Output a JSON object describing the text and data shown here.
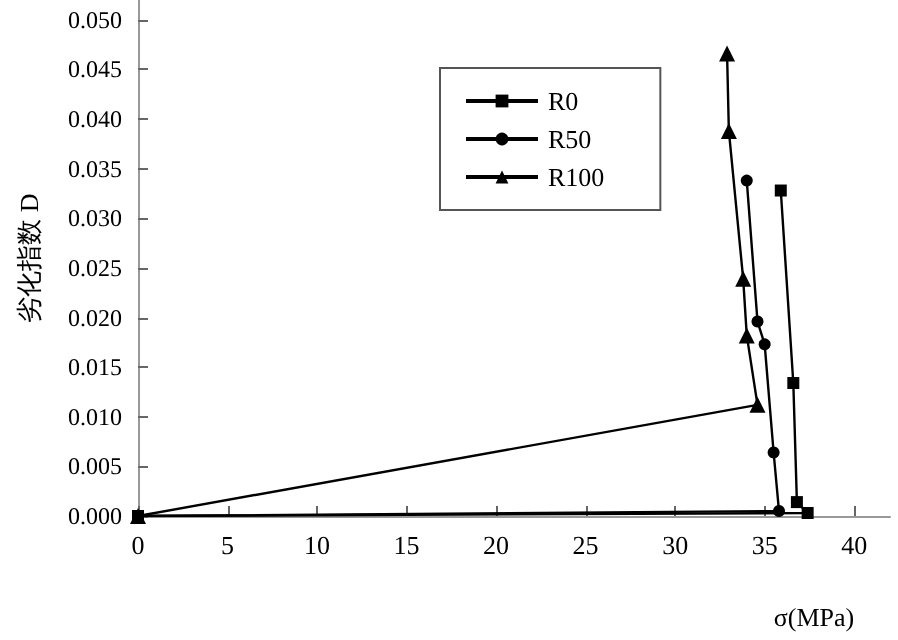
{
  "chart_data": {
    "type": "line",
    "xlabel": "σ(MPa)",
    "ylabel": "劣化指数 D",
    "series": [
      {
        "name": "R0",
        "color": "#000000",
        "marker": "square",
        "x": [
          35.9,
          36.6,
          36.8,
          37.4,
          0
        ],
        "values": [
          0.0328,
          0.0134,
          0.0014,
          0.0003,
          0
        ]
      },
      {
        "name": "R50",
        "color": "#000000",
        "marker": "circle",
        "x": [
          34.0,
          34.6,
          35.0,
          35.5,
          35.8,
          0
        ],
        "values": [
          0.0338,
          0.0196,
          0.0173,
          0.0064,
          0.0005,
          0
        ]
      },
      {
        "name": "R100",
        "color": "#000000",
        "marker": "triangle",
        "x": [
          32.9,
          33.0,
          33.8,
          34.0,
          34.6,
          0
        ],
        "values": [
          0.0466,
          0.0388,
          0.0239,
          0.0182,
          0.0112,
          0
        ]
      }
    ],
    "xlim": [
      0,
      42
    ],
    "xticks": [
      0,
      5,
      10,
      15,
      20,
      25,
      30,
      35,
      40
    ],
    "ylim": [
      0,
      0.052
    ],
    "yticks": [
      {
        "value": 0,
        "label": "0.000"
      },
      {
        "value": 0.005,
        "label": "0.005"
      },
      {
        "value": 0.01,
        "label": "0.010"
      },
      {
        "value": 0.015,
        "label": "0.015"
      },
      {
        "value": 0.02,
        "label": "0.020"
      },
      {
        "value": 0.025,
        "label": "0.025"
      },
      {
        "value": 0.03,
        "label": "0.030"
      },
      {
        "value": 0.035,
        "label": "0.035"
      },
      {
        "value": 0.04,
        "label": "0.040"
      },
      {
        "value": 0.045,
        "label": "0.045"
      },
      {
        "value": 0.05,
        "label": "0.050"
      }
    ],
    "grid": false,
    "legend": "top",
    "line_style": "solid"
  }
}
